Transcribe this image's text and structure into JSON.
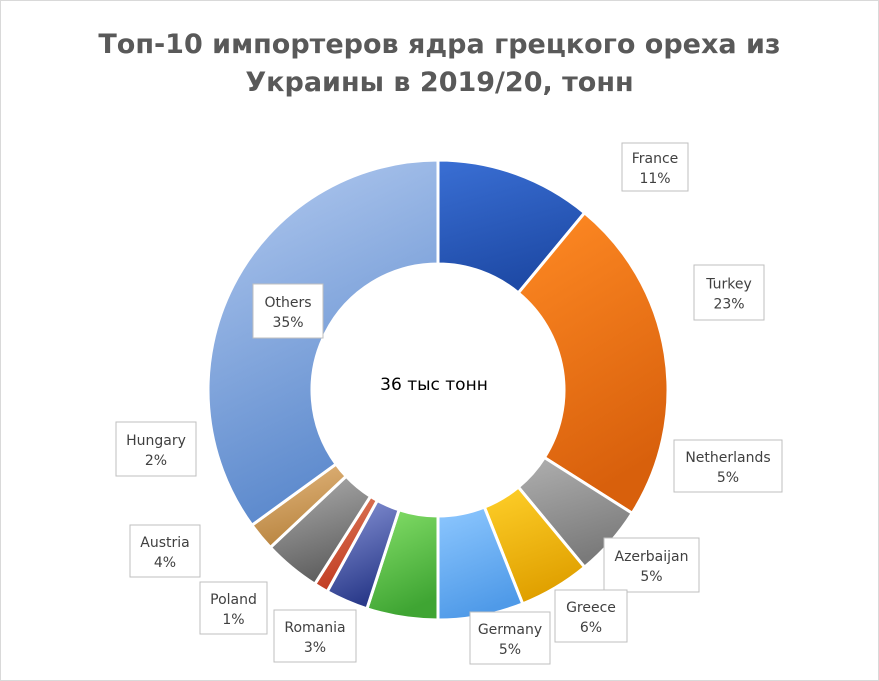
{
  "chart_data": {
    "type": "pie",
    "subtype": "doughnut",
    "title_line1": "Топ-10 импортеров ядра грецкого ореха из",
    "title_line2": "Украины в 2019/20, тонн",
    "center_label": "36 тыс тонн",
    "slices": [
      {
        "name": "France",
        "percent": 11,
        "label": "11%",
        "color": "#2e5fc4"
      },
      {
        "name": "Turkey",
        "percent": 23,
        "label": "23%",
        "color": "#f07818"
      },
      {
        "name": "Netherlands",
        "percent": 5,
        "label": "5%",
        "color": "#9a9a9a"
      },
      {
        "name": "Azerbaijan",
        "percent": 5,
        "label": "5%",
        "color": "#f2b705"
      },
      {
        "name": "Greece",
        "percent": 6,
        "label": "6%",
        "color": "#f5c400"
      },
      {
        "name": "Germany",
        "percent": 5,
        "label": "5%",
        "color": "#5aa4ec"
      },
      {
        "name": "Romania",
        "percent": 3,
        "label": "3%",
        "color": "#5db84a"
      },
      {
        "name": "Poland",
        "percent": 1,
        "label": "1%",
        "color": "#2c3e8c"
      },
      {
        "name": "Austria",
        "percent": 4,
        "label": "4%",
        "color": "#c0392b"
      },
      {
        "name": "Hungary",
        "percent": 2,
        "label": "2%",
        "color": "#d0a060"
      },
      {
        "name": "Others",
        "percent": 35,
        "label": "35%",
        "color": "#8fb0e0"
      }
    ]
  }
}
